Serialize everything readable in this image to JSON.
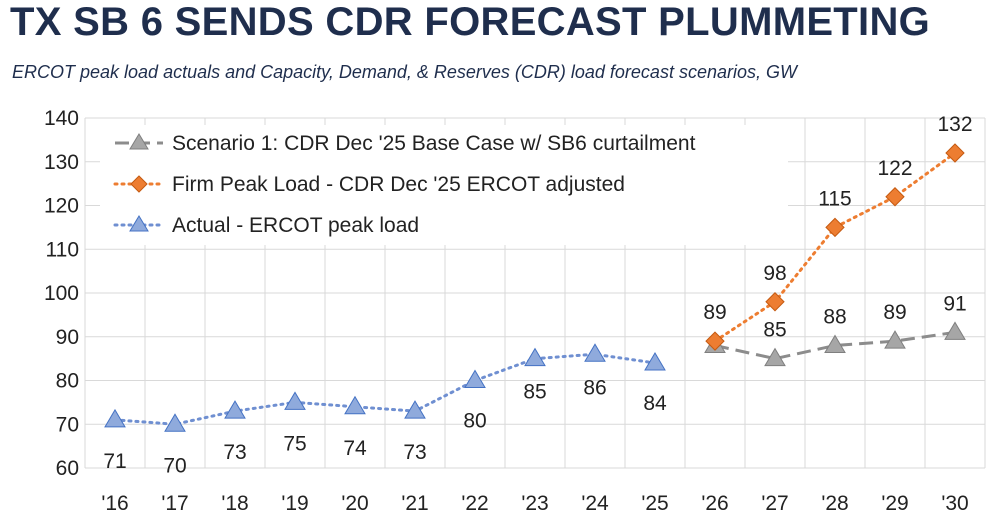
{
  "title": "TX SB 6 SENDS CDR FORECAST PLUMMETING",
  "subtitle": "ERCOT peak load actuals and Capacity, Demand, & Reserves (CDR) load forecast scenarios, GW",
  "chart_data": {
    "type": "line",
    "categories": [
      "'16",
      "'17",
      "'18",
      "'19",
      "'20",
      "'21",
      "'22",
      "'23",
      "'24",
      "'25",
      "'26",
      "'27",
      "'28",
      "'29",
      "'30"
    ],
    "ylim": [
      60,
      140
    ],
    "yticks": [
      60,
      70,
      80,
      90,
      100,
      110,
      120,
      130,
      140
    ],
    "grid": true,
    "legend_position": "top-left",
    "colors": {
      "scenario1": "#8c8c8c",
      "firm": "#ed7d31",
      "actual": "#4472c4"
    },
    "series": [
      {
        "name": "Scenario 1: CDR Dec '25 Base Case w/ SB6 curtailment",
        "key": "scenario1",
        "x": [
          "'26",
          "'27",
          "'28",
          "'29",
          "'30"
        ],
        "values": [
          88,
          85,
          88,
          89,
          91
        ],
        "labels": [
          "",
          "85",
          "88",
          "89",
          "91"
        ]
      },
      {
        "name": "Firm Peak Load - CDR Dec '25 ERCOT adjusted",
        "key": "firm",
        "x": [
          "'26",
          "'27",
          "'28",
          "'29",
          "'30"
        ],
        "values": [
          89,
          98,
          115,
          122,
          132
        ],
        "labels": [
          "89",
          "98",
          "115",
          "122",
          "132"
        ]
      },
      {
        "name": "Actual - ERCOT peak load",
        "key": "actual",
        "x": [
          "'16",
          "'17",
          "'18",
          "'19",
          "'20",
          "'21",
          "'22",
          "'23",
          "'24",
          "'25"
        ],
        "values": [
          71,
          70,
          73,
          75,
          74,
          73,
          80,
          85,
          86,
          84
        ],
        "labels": [
          "71",
          "70",
          "73",
          "75",
          "74",
          "73",
          "80",
          "85",
          "86",
          "84"
        ]
      }
    ]
  }
}
